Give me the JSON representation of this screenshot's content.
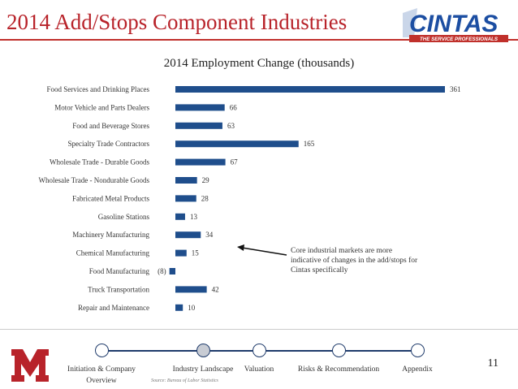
{
  "header": {
    "title": "2014 Add/Stops Component Industries",
    "logo_text": "CINTAS",
    "logo_tagline": "THE SERVICE PROFESSIONALS"
  },
  "colors": {
    "title": "#b8232a",
    "bar": "#1f4e8c",
    "timeline": "#1f3b6b"
  },
  "chart_data": {
    "type": "bar",
    "orientation": "horizontal",
    "title": "2014 Employment Change (thousands)",
    "categories": [
      "Food Services and Drinking Places",
      "Motor Vehicle and Parts Dealers",
      "Food and Beverage Stores",
      "Specialty Trade Contractors",
      "Wholesale Trade - Durable Goods",
      "Wholesale Trade - Nondurable Goods",
      "Fabricated Metal Products",
      "Gasoline Stations",
      "Machinery Manufacturing",
      "Chemical Manufacturing",
      "Food Manufacturing",
      "Truck Transportation",
      "Repair and Maintenance"
    ],
    "values": [
      361,
      66,
      63,
      165,
      67,
      29,
      28,
      13,
      34,
      15,
      -8,
      42,
      10
    ],
    "value_labels": [
      "361",
      "66",
      "63",
      "165",
      "67",
      "29",
      "28",
      "13",
      "34",
      "15",
      "(8)",
      "42",
      "10"
    ],
    "grid": false,
    "legend": "none"
  },
  "annotation": {
    "text": "Core industrial markets are more indicative of changes in the add/stops for Cintas specifically"
  },
  "timeline": {
    "items": [
      {
        "label": "Initiation & Company Overview",
        "active": false
      },
      {
        "label": "Industry Landscape",
        "active": true
      },
      {
        "label": "Valuation",
        "active": false
      },
      {
        "label": "Risks & Recommendation",
        "active": false
      },
      {
        "label": "Appendix",
        "active": false
      }
    ]
  },
  "footer": {
    "source": "Source: Bureau of Labor Statistics",
    "page_number": "11"
  }
}
